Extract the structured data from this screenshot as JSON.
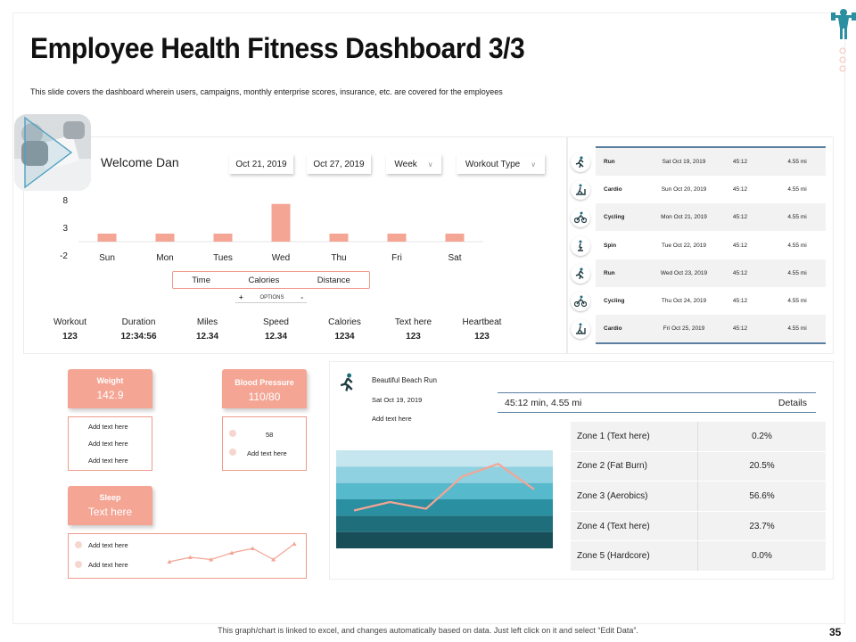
{
  "header": {
    "title": "Employee Health Fitness Dashboard 3/3",
    "subtitle": "This slide covers the dashboard wherein users, campaigns, monthly enterprise scores, insurance, etc. are covered for the employees"
  },
  "welcome": "Welcome Dan",
  "filters": {
    "date_from": "Oct 21, 2019",
    "date_to": "Oct 27, 2019",
    "period": "Week",
    "workout_type": "Workout Type"
  },
  "chart_data": {
    "type": "bar",
    "categories": [
      "Sun",
      "Mon",
      "Tues",
      "Wed",
      "Thu",
      "Fri",
      "Sat"
    ],
    "values": [
      -0.5,
      0.7,
      -0.4,
      6.6,
      0.6,
      -0.3,
      0.0
    ],
    "yticks": [
      8,
      3,
      -2
    ],
    "ylim": [
      -2,
      8
    ],
    "color": "#f4a594"
  },
  "metric_options": [
    "Time",
    "Calories",
    "Distance"
  ],
  "options_control": {
    "plus": "+",
    "label": "OPTIONS",
    "minus": "-"
  },
  "stats": [
    {
      "label": "Workout",
      "value": "123"
    },
    {
      "label": "Duration",
      "value": "12:34:56"
    },
    {
      "label": "Miles",
      "value": "12.34"
    },
    {
      "label": "Speed",
      "value": "12.34"
    },
    {
      "label": "Calories",
      "value": "1234"
    },
    {
      "label": "Text here",
      "value": "123"
    },
    {
      "label": "Heartbeat",
      "value": "123"
    }
  ],
  "workouts": [
    {
      "type": "Run",
      "date": "Sat Oct 19, 2019",
      "time": "45:12",
      "distance": "4.55 mi",
      "icon": "runner-icon"
    },
    {
      "type": "Cardio",
      "date": "Sun Oct 20, 2019",
      "time": "45:12",
      "distance": "4.55 mi",
      "icon": "treadmill-icon"
    },
    {
      "type": "Cycling",
      "date": "Mon Oct 21, 2019",
      "time": "45:12",
      "distance": "4.55 mi",
      "icon": "cyclist-icon"
    },
    {
      "type": "Spin",
      "date": "Tue Oct 22, 2019",
      "time": "45:12",
      "distance": "4.55 mi",
      "icon": "spin-bike-icon"
    },
    {
      "type": "Run",
      "date": "Wed Oct 23, 2019",
      "time": "45:12",
      "distance": "4.55 mi",
      "icon": "runner-icon"
    },
    {
      "type": "Cycling",
      "date": "Thu Oct 24, 2019",
      "time": "45:12",
      "distance": "4.55 mi",
      "icon": "cyclist-icon"
    },
    {
      "type": "Cardio",
      "date": "Fri Oct 25, 2019",
      "time": "45:12",
      "distance": "4.55 mi",
      "icon": "treadmill-icon"
    }
  ],
  "weight": {
    "label": "Weight",
    "value": "142.9",
    "notes": [
      "Add text  here",
      "Add text  here",
      "Add text  here"
    ]
  },
  "blood_pressure": {
    "label": "Blood Pressure",
    "value": "110/80",
    "heart_rate": "58",
    "note": "Add text  here"
  },
  "sleep": {
    "label": "Sleep",
    "value": "Text here",
    "notes": [
      "Add text  here",
      "Add text  here"
    ],
    "trend": [
      2,
      4,
      3,
      6,
      8,
      3,
      10
    ]
  },
  "run": {
    "title": "Beautiful Beach Run",
    "date": "Sat Oct 19, 2019",
    "note": "Add text here",
    "summary": "45:12 min,   4.55 mi",
    "details_label": "Details",
    "zones": [
      {
        "name": "Zone 1 (Text here)",
        "pct": "0.2%"
      },
      {
        "name": "Zone 2  (Fat Burn)",
        "pct": "20.5%"
      },
      {
        "name": "Zone 3 (Aerobics)",
        "pct": "56.6%"
      },
      {
        "name": "Zone 4 (Text here)",
        "pct": "23.7%"
      },
      {
        "name": "Zone 5  (Hardcore)",
        "pct": "0.0%"
      }
    ],
    "band_colors": [
      "#c5e6ef",
      "#8fd1e0",
      "#57b9cc",
      "#2a8fa0",
      "#1f6e7c",
      "#174e57"
    ],
    "trend": [
      3,
      4,
      3.2,
      7,
      8.5,
      5.5
    ]
  },
  "footer": "This graph/chart is linked to excel, and changes automatically based on data. Just left click on it and select “Edit Data”.",
  "page_number": "35"
}
